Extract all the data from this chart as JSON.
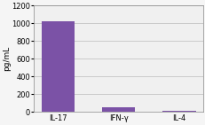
{
  "categories": [
    "IL-17",
    "IFN-γ",
    "IL-4"
  ],
  "values": [
    1020,
    55,
    18
  ],
  "bar_color": "#7B52A6",
  "bar_width": 0.55,
  "ylim": [
    0,
    1200
  ],
  "yticks": [
    0,
    200,
    400,
    600,
    800,
    1000,
    1200
  ],
  "ylabel": "pg/mL",
  "ylabel_fontsize": 6.5,
  "tick_fontsize": 6,
  "xtick_fontsize": 6,
  "background_color": "#f5f5f5",
  "plot_bg_color": "#f0f0f0",
  "grid_color": "#bbbbbb"
}
